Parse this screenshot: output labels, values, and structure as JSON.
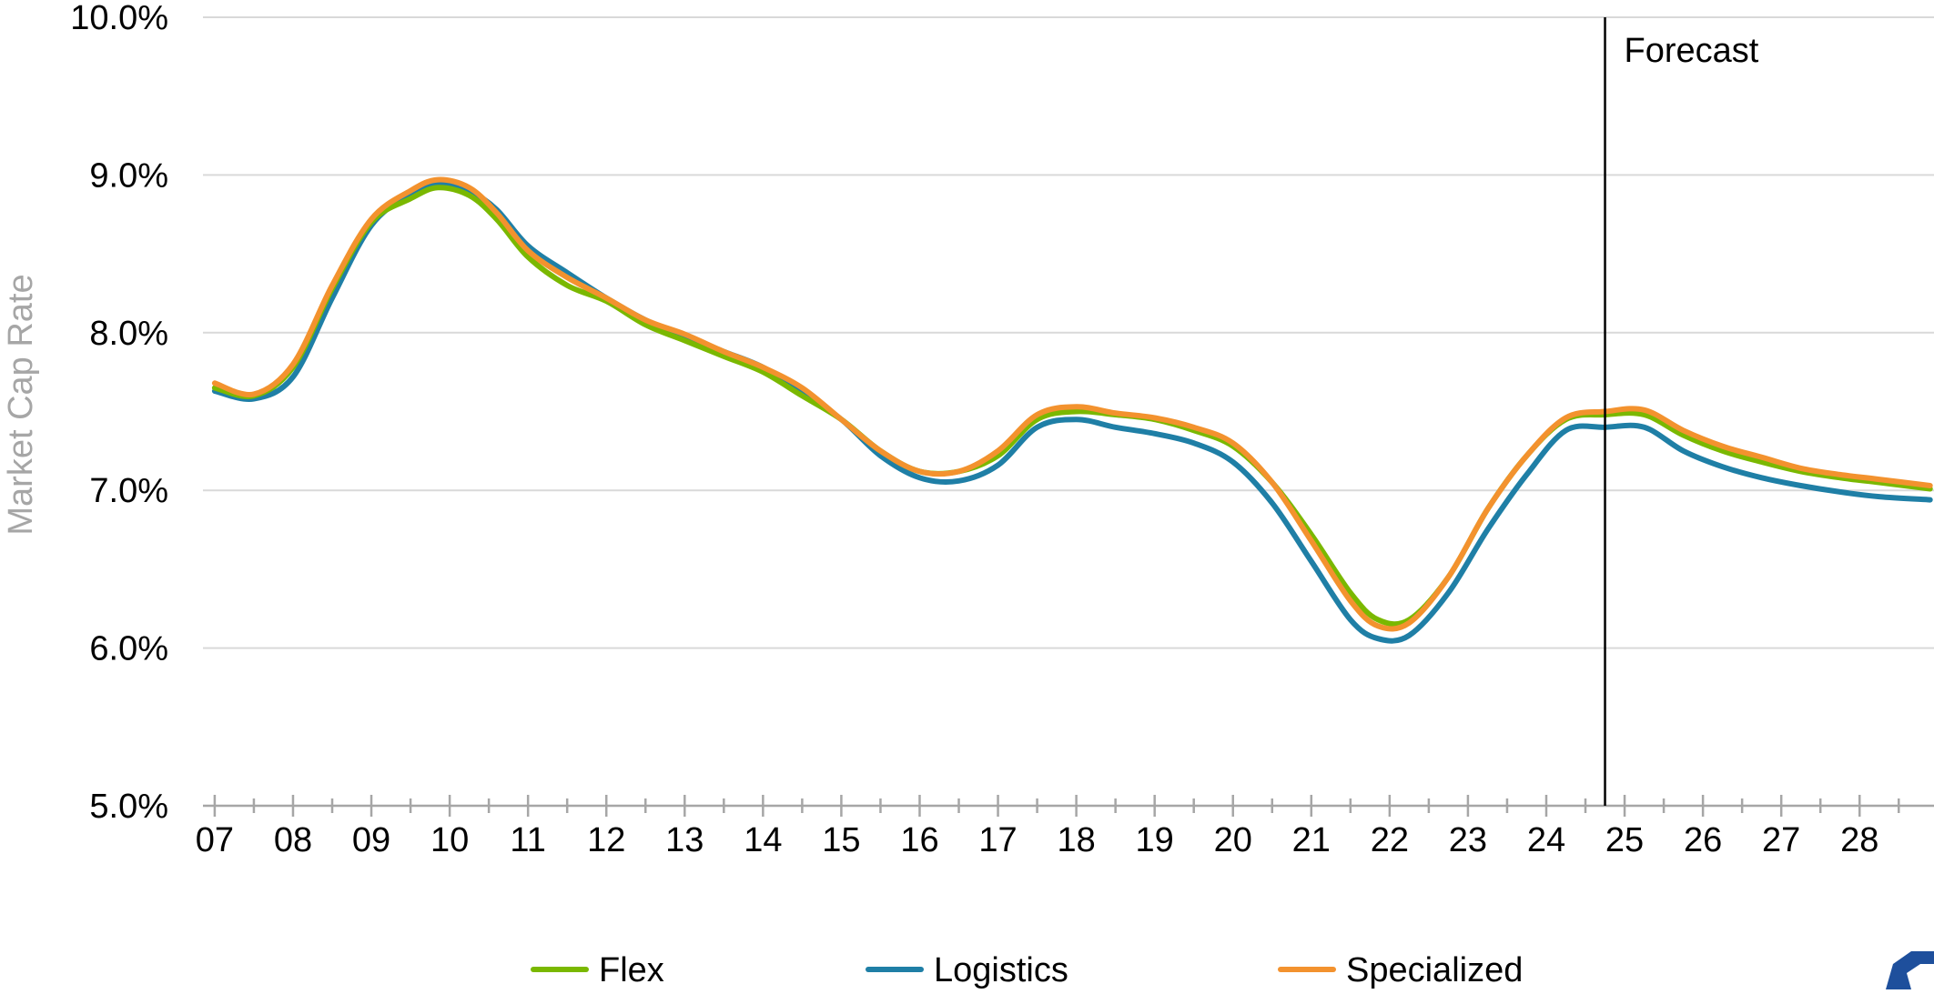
{
  "chart_data": {
    "type": "line",
    "ylabel": "Market Cap Rate",
    "ylim": [
      5.0,
      10.0
    ],
    "y_ticks": [
      "5.0%",
      "6.0%",
      "7.0%",
      "8.0%",
      "9.0%",
      "10.0%"
    ],
    "y_tick_values": [
      5.0,
      6.0,
      7.0,
      8.0,
      9.0,
      10.0
    ],
    "x_ticks": [
      "07",
      "08",
      "09",
      "10",
      "11",
      "12",
      "13",
      "14",
      "15",
      "16",
      "17",
      "18",
      "19",
      "20",
      "21",
      "22",
      "23",
      "24",
      "25",
      "26",
      "27",
      "28"
    ],
    "xlim": [
      2006.85,
      2028.95
    ],
    "x_minor_step": 0.5,
    "grid": "horizontal",
    "annotation": {
      "label": "Forecast",
      "x": 2024.75
    },
    "legend": "bottom",
    "series": [
      {
        "name": "Flex",
        "color": "#7ab800",
        "x": [
          2007.0,
          2007.5,
          2008.0,
          2008.5,
          2009.0,
          2009.5,
          2009.85,
          2010.25,
          2010.6,
          2011.0,
          2011.5,
          2012.0,
          2012.5,
          2013.0,
          2013.5,
          2014.0,
          2014.5,
          2015.0,
          2015.5,
          2016.0,
          2016.5,
          2017.0,
          2017.5,
          2018.0,
          2018.5,
          2019.0,
          2019.5,
          2020.0,
          2020.5,
          2021.0,
          2021.5,
          2021.85,
          2022.25,
          2022.75,
          2023.25,
          2023.75,
          2024.25,
          2024.75,
          2025.25,
          2025.75,
          2026.25,
          2026.75,
          2027.25,
          2027.75,
          2028.25,
          2028.9
        ],
        "values": [
          7.65,
          7.6,
          7.78,
          8.28,
          8.7,
          8.85,
          8.92,
          8.87,
          8.72,
          8.48,
          8.3,
          8.2,
          8.05,
          7.95,
          7.85,
          7.75,
          7.6,
          7.45,
          7.25,
          7.12,
          7.12,
          7.22,
          7.45,
          7.5,
          7.48,
          7.45,
          7.38,
          7.28,
          7.05,
          6.72,
          6.35,
          6.18,
          6.18,
          6.45,
          6.88,
          7.22,
          7.45,
          7.48,
          7.48,
          7.35,
          7.25,
          7.18,
          7.12,
          7.08,
          7.05,
          7.01
        ]
      },
      {
        "name": "Logistics",
        "color": "#1f7fa6",
        "x": [
          2007.0,
          2007.5,
          2008.0,
          2008.5,
          2009.0,
          2009.5,
          2009.85,
          2010.25,
          2010.6,
          2011.0,
          2011.5,
          2012.0,
          2012.5,
          2013.0,
          2013.5,
          2014.0,
          2014.5,
          2015.0,
          2015.5,
          2016.0,
          2016.5,
          2017.0,
          2017.5,
          2018.0,
          2018.5,
          2019.0,
          2019.5,
          2020.0,
          2020.5,
          2021.0,
          2021.5,
          2021.85,
          2022.25,
          2022.75,
          2023.25,
          2023.75,
          2024.25,
          2024.75,
          2025.25,
          2025.75,
          2026.25,
          2026.75,
          2027.25,
          2027.75,
          2028.25,
          2028.9
        ],
        "values": [
          7.63,
          7.58,
          7.72,
          8.22,
          8.68,
          8.88,
          8.95,
          8.9,
          8.78,
          8.55,
          8.38,
          8.22,
          8.08,
          7.98,
          7.88,
          7.78,
          7.62,
          7.45,
          7.22,
          7.08,
          7.06,
          7.16,
          7.4,
          7.45,
          7.4,
          7.36,
          7.3,
          7.18,
          6.92,
          6.55,
          6.18,
          6.06,
          6.08,
          6.35,
          6.75,
          7.1,
          7.38,
          7.4,
          7.4,
          7.25,
          7.15,
          7.08,
          7.03,
          6.99,
          6.96,
          6.94
        ]
      },
      {
        "name": "Specialized",
        "color": "#f3922e",
        "x": [
          2007.0,
          2007.5,
          2008.0,
          2008.5,
          2009.0,
          2009.5,
          2009.85,
          2010.25,
          2010.6,
          2011.0,
          2011.5,
          2012.0,
          2012.5,
          2013.0,
          2013.5,
          2014.0,
          2014.5,
          2015.0,
          2015.5,
          2016.0,
          2016.5,
          2017.0,
          2017.5,
          2018.0,
          2018.5,
          2019.0,
          2019.5,
          2020.0,
          2020.5,
          2021.0,
          2021.5,
          2021.85,
          2022.25,
          2022.75,
          2023.25,
          2023.75,
          2024.25,
          2024.75,
          2025.25,
          2025.75,
          2026.25,
          2026.75,
          2027.25,
          2027.75,
          2028.25,
          2028.9
        ],
        "values": [
          7.68,
          7.61,
          7.8,
          8.3,
          8.72,
          8.9,
          8.97,
          8.92,
          8.76,
          8.52,
          8.35,
          8.22,
          8.08,
          7.99,
          7.88,
          7.78,
          7.65,
          7.45,
          7.25,
          7.12,
          7.12,
          7.25,
          7.48,
          7.53,
          7.49,
          7.46,
          7.4,
          7.3,
          7.05,
          6.68,
          6.3,
          6.14,
          6.16,
          6.45,
          6.88,
          7.22,
          7.46,
          7.5,
          7.51,
          7.38,
          7.28,
          7.21,
          7.14,
          7.1,
          7.07,
          7.03
        ]
      }
    ]
  }
}
